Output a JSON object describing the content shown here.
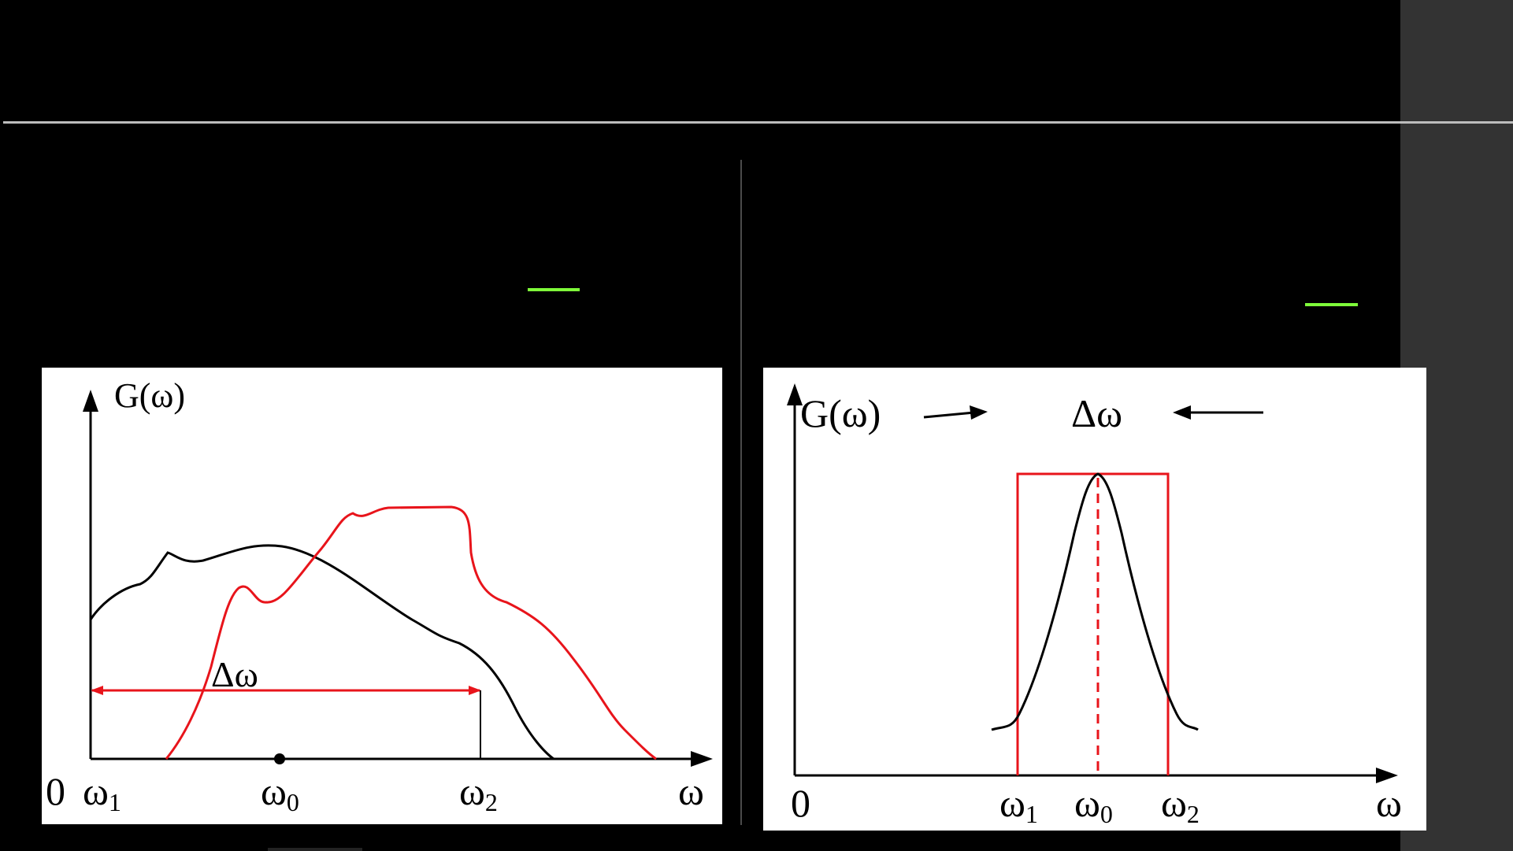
{
  "colors": {
    "background": "#000000",
    "side_panel": "#333333",
    "rule": "#bdbdbd",
    "accent_green": "#7fff3a",
    "panel_bg": "#ffffff",
    "curve_black": "#000000",
    "curve_red": "#e8141b"
  },
  "left_diagram": {
    "y_label": "G(ω)",
    "x_label": "ω",
    "origin": "0",
    "w1": "ω",
    "w1_sub": "1",
    "w0": "ω",
    "w0_sub": "0",
    "w2": "ω",
    "w2_sub": "2",
    "bandwidth_label": "Δω"
  },
  "right_diagram": {
    "y_label": "G(ω)",
    "x_label": "ω",
    "origin": "0",
    "w1": "ω",
    "w1_sub": "1",
    "w0": "ω",
    "w0_sub": "0",
    "w2": "ω",
    "w2_sub": "2",
    "bandwidth_label": "Δω"
  }
}
